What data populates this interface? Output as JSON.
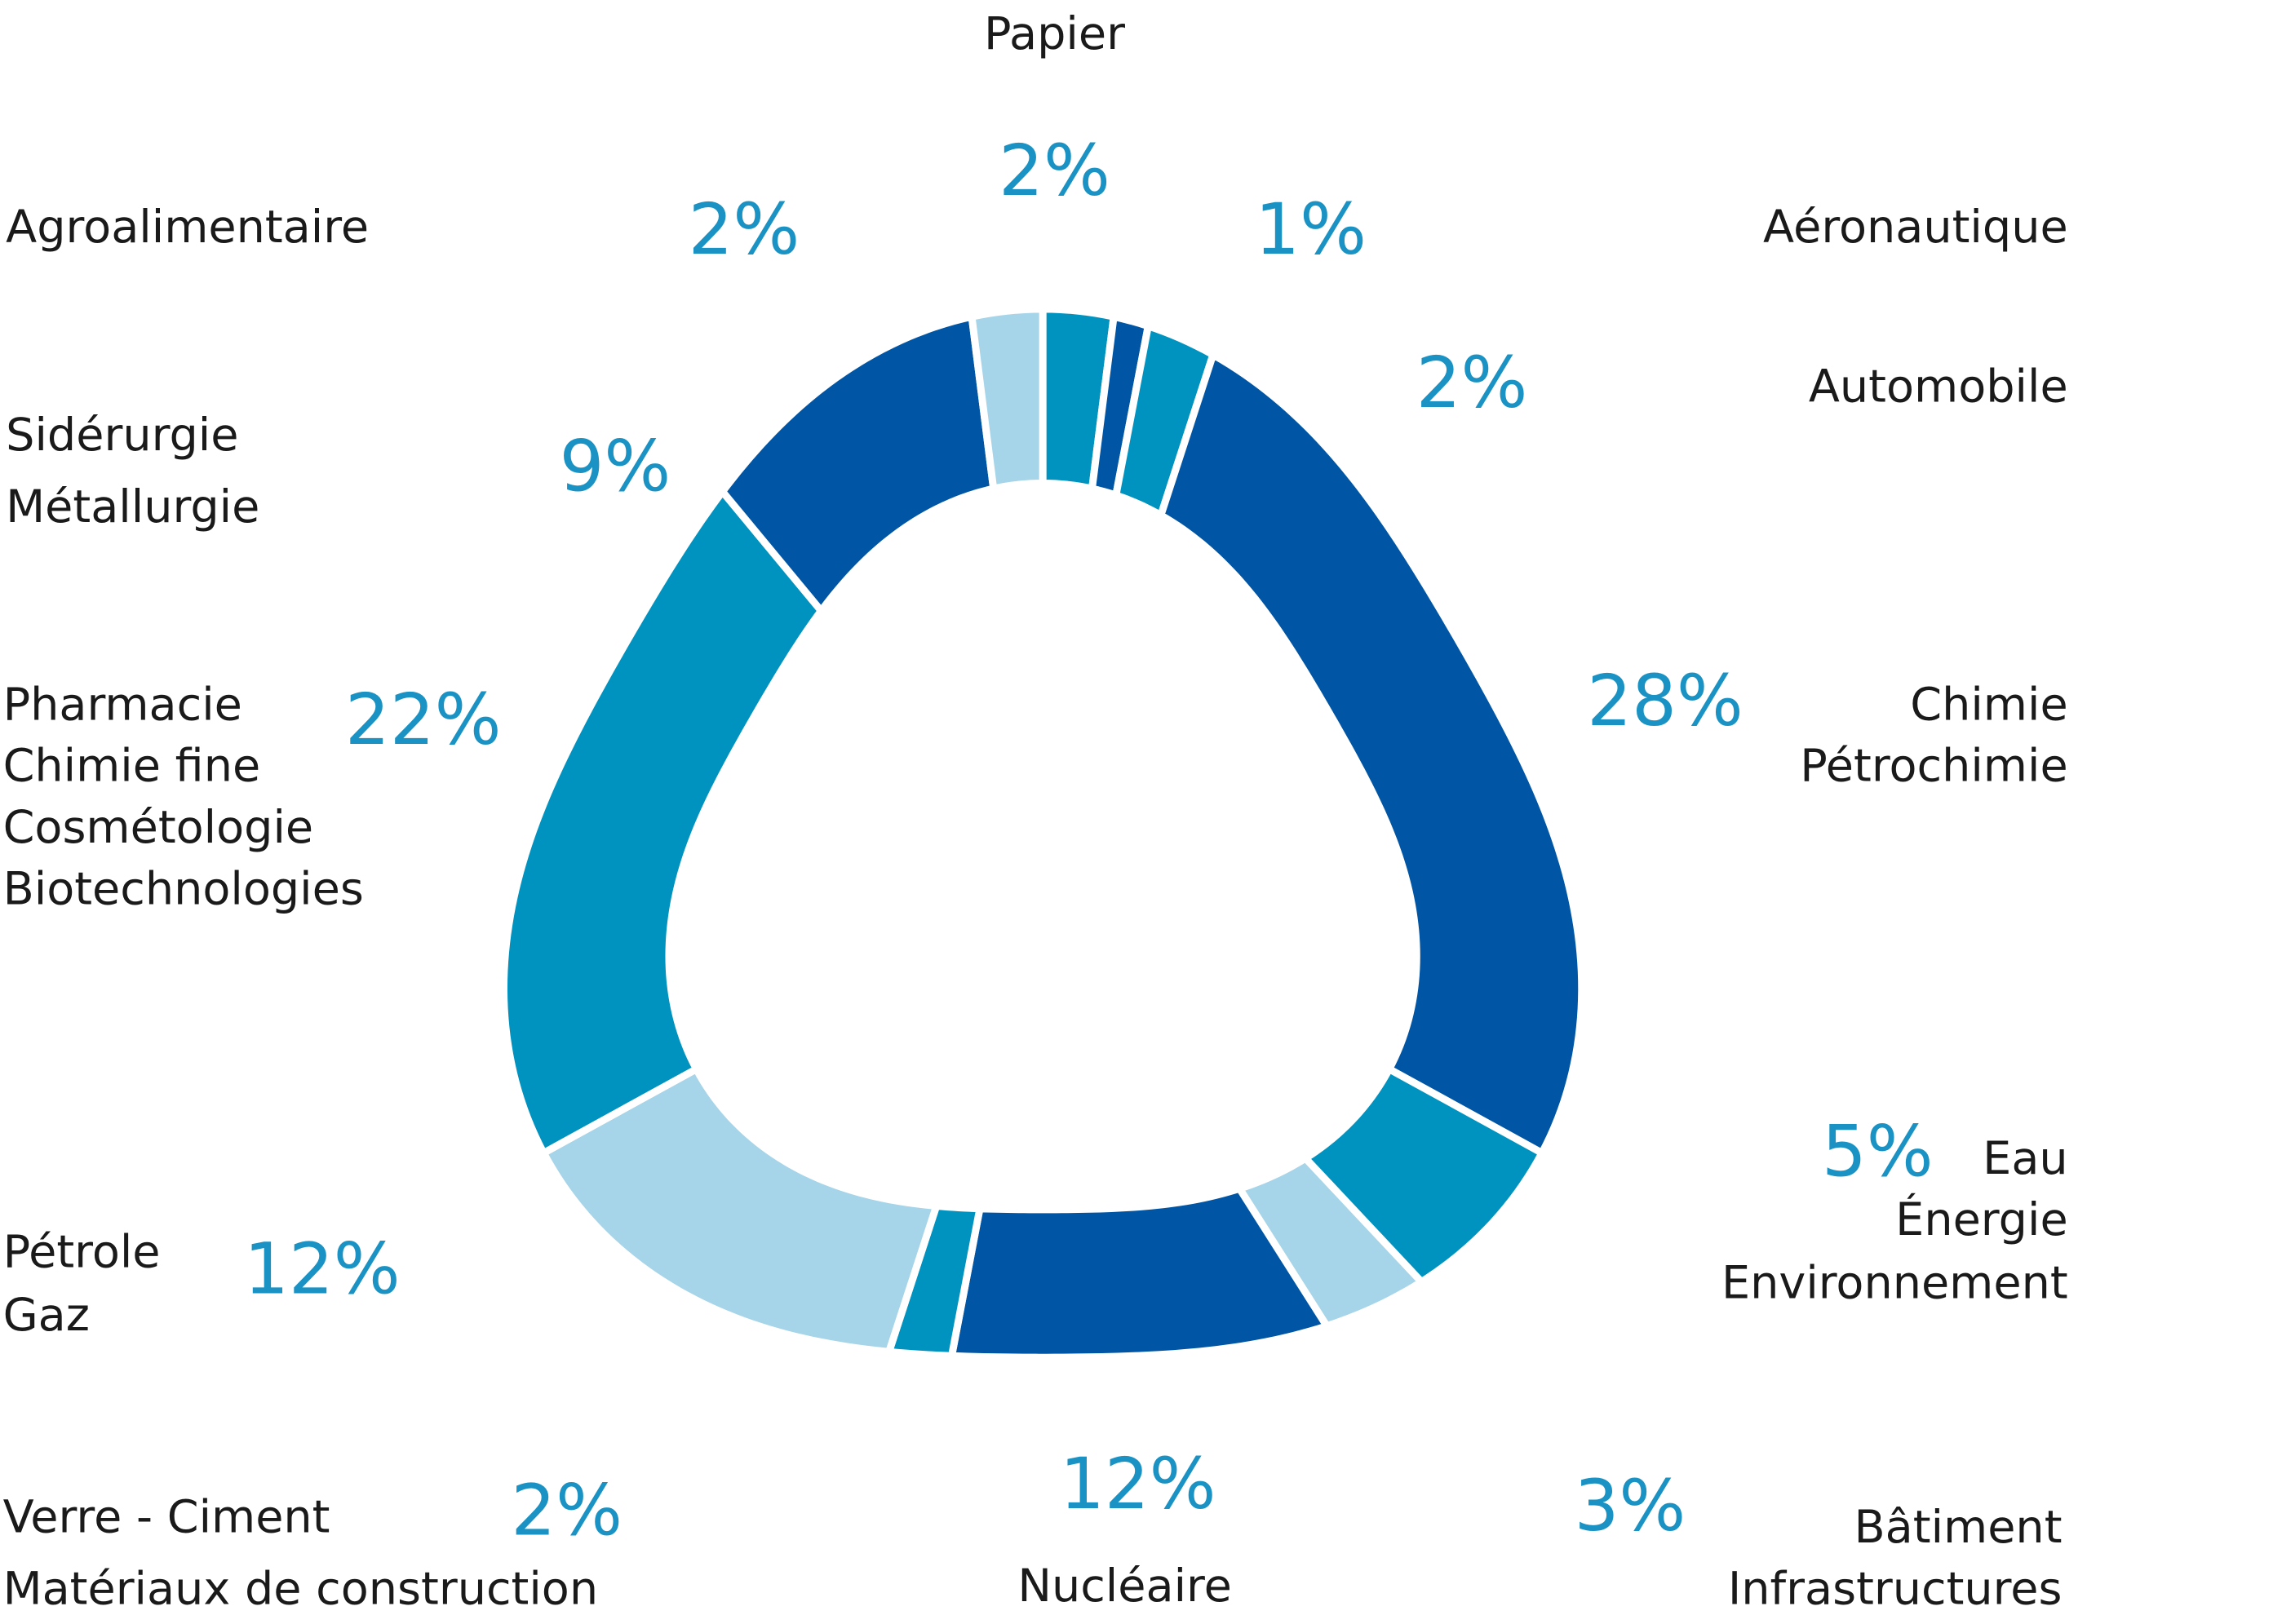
{
  "chart_data": {
    "type": "donut",
    "categories": [
      [
        "Papier"
      ],
      [
        "Aéronautique"
      ],
      [
        "Automobile"
      ],
      [
        "Chimie",
        "Pétrochimie"
      ],
      [
        "Eau",
        "Énergie",
        "Environnement"
      ],
      [
        "Bâtiment",
        "Infrastructures"
      ],
      [
        "Nucléaire"
      ],
      [
        "Verre - Ciment",
        "Matériaux de construction"
      ],
      [
        "Pétrole",
        "Gaz"
      ],
      [
        "Pharmacie",
        "Chimie fine",
        "Cosmétologie",
        "Biotechnologies"
      ],
      [
        "Sidérurgie",
        "Métallurgie"
      ],
      [
        "Agroalimentaire"
      ]
    ],
    "values": [
      2,
      1,
      2,
      28,
      5,
      3,
      12,
      2,
      12,
      22,
      9,
      2
    ],
    "value_labels": [
      "2%",
      "1%",
      "2%",
      "28%",
      "5%",
      "3%",
      "12%",
      "2%",
      "12%",
      "22%",
      "9%",
      "2%"
    ],
    "colors": [
      "#0093c0",
      "#0055a4",
      "#0093c0",
      "#0055a4",
      "#0093c0",
      "#a6d4e8",
      "#0055a4",
      "#0093c0",
      "#a6d4e8",
      "#0093c0",
      "#0055a4",
      "#a6d4e8"
    ]
  }
}
